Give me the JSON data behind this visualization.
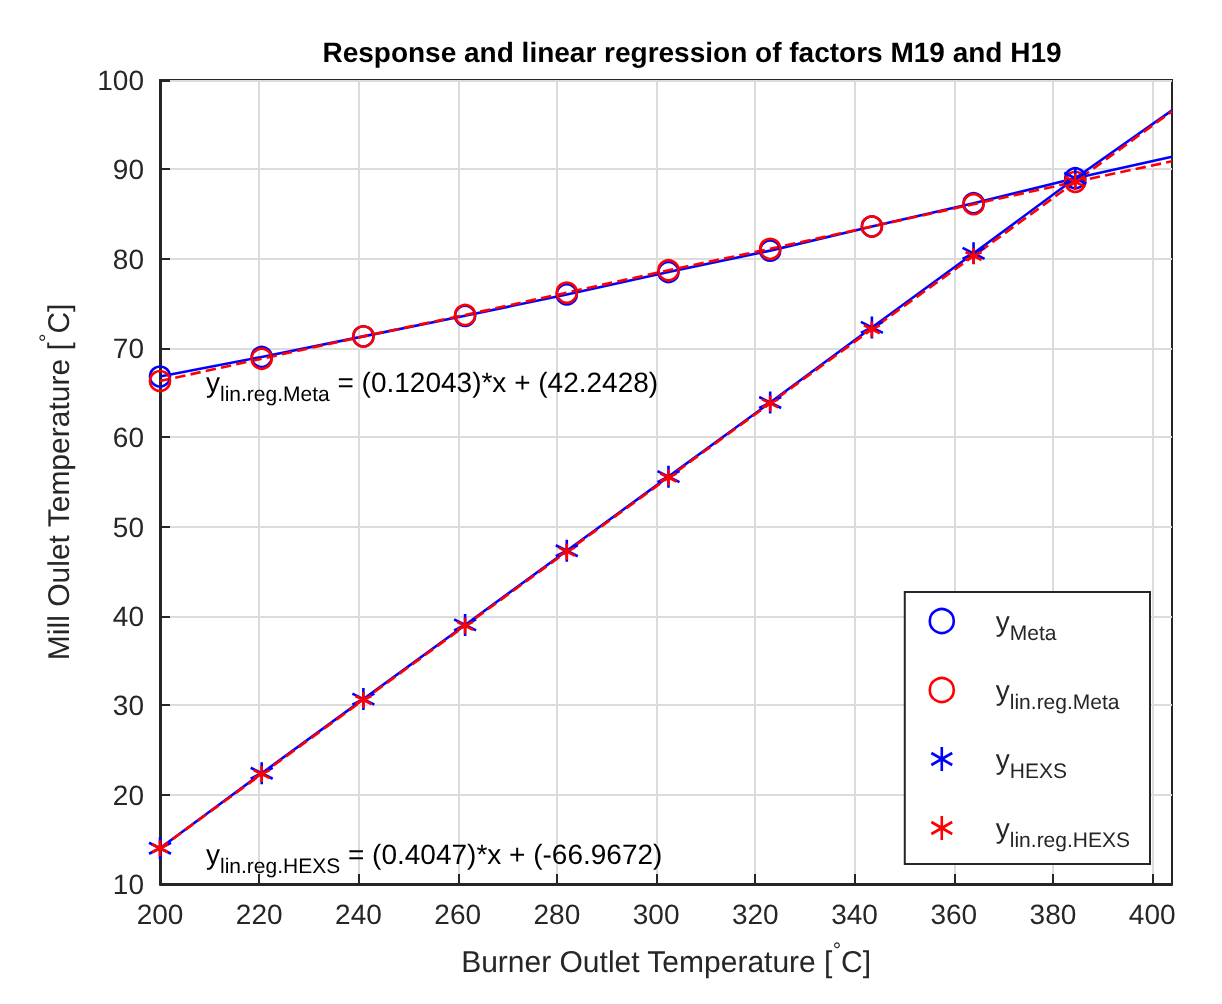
{
  "chart_data": {
    "type": "line",
    "title": "Response and linear regression of factors M19 and H19",
    "xlabel": "Burner Outlet Temperature [$^{°}$C]",
    "ylabel": "Mill Oulet Temperature [$^{°}$C]",
    "x": [
      200,
      220.5,
      241,
      261.5,
      282,
      302.5,
      323,
      343.5,
      364,
      384.5,
      404
    ],
    "xlim": [
      200,
      404
    ],
    "xticks": [
      200,
      220,
      240,
      260,
      280,
      300,
      320,
      340,
      360,
      380,
      400
    ],
    "ylim": [
      10,
      100
    ],
    "yticks": [
      10,
      20,
      30,
      40,
      50,
      60,
      70,
      80,
      90,
      100
    ],
    "grid": true,
    "legend": "bottom right",
    "series": [
      {
        "name": "y$_{Meta}$",
        "color": "#0000ff",
        "marker": "circle",
        "line_style": "solid",
        "values": [
          66.8,
          69.0,
          71.3,
          73.6,
          76.0,
          78.5,
          80.9,
          83.6,
          86.2,
          89.0,
          91.4
        ]
      },
      {
        "name": "y$_{lin.reg.Meta}$",
        "color": "#ff0000",
        "marker": "circle",
        "line_style": "dashed",
        "values": [
          66.3,
          68.8,
          71.3,
          73.7,
          76.2,
          78.7,
          81.1,
          83.6,
          86.1,
          88.6,
          90.9
        ]
      },
      {
        "name": "y$_{HEXS}$",
        "color": "#0000ff",
        "marker": "cross",
        "line_style": "solid",
        "values": [
          14.0,
          22.4,
          30.7,
          39.0,
          47.3,
          55.6,
          63.9,
          72.3,
          80.6,
          89.0,
          96.6
        ]
      },
      {
        "name": "y$_{lin.reg.HEXS}$",
        "color": "#ff0000",
        "marker": "cross",
        "line_style": "dashed",
        "values": [
          14.0,
          22.3,
          30.6,
          38.9,
          47.2,
          55.5,
          63.8,
          72.1,
          80.3,
          88.6,
          96.5
        ]
      }
    ],
    "annotations": [
      "y$_{lin.reg.Meta}$ = (0.12043)*x + (42.2428)",
      "y$_{lin.reg.HEXS}$ = (0.4047)*x + (-66.9672)"
    ]
  }
}
